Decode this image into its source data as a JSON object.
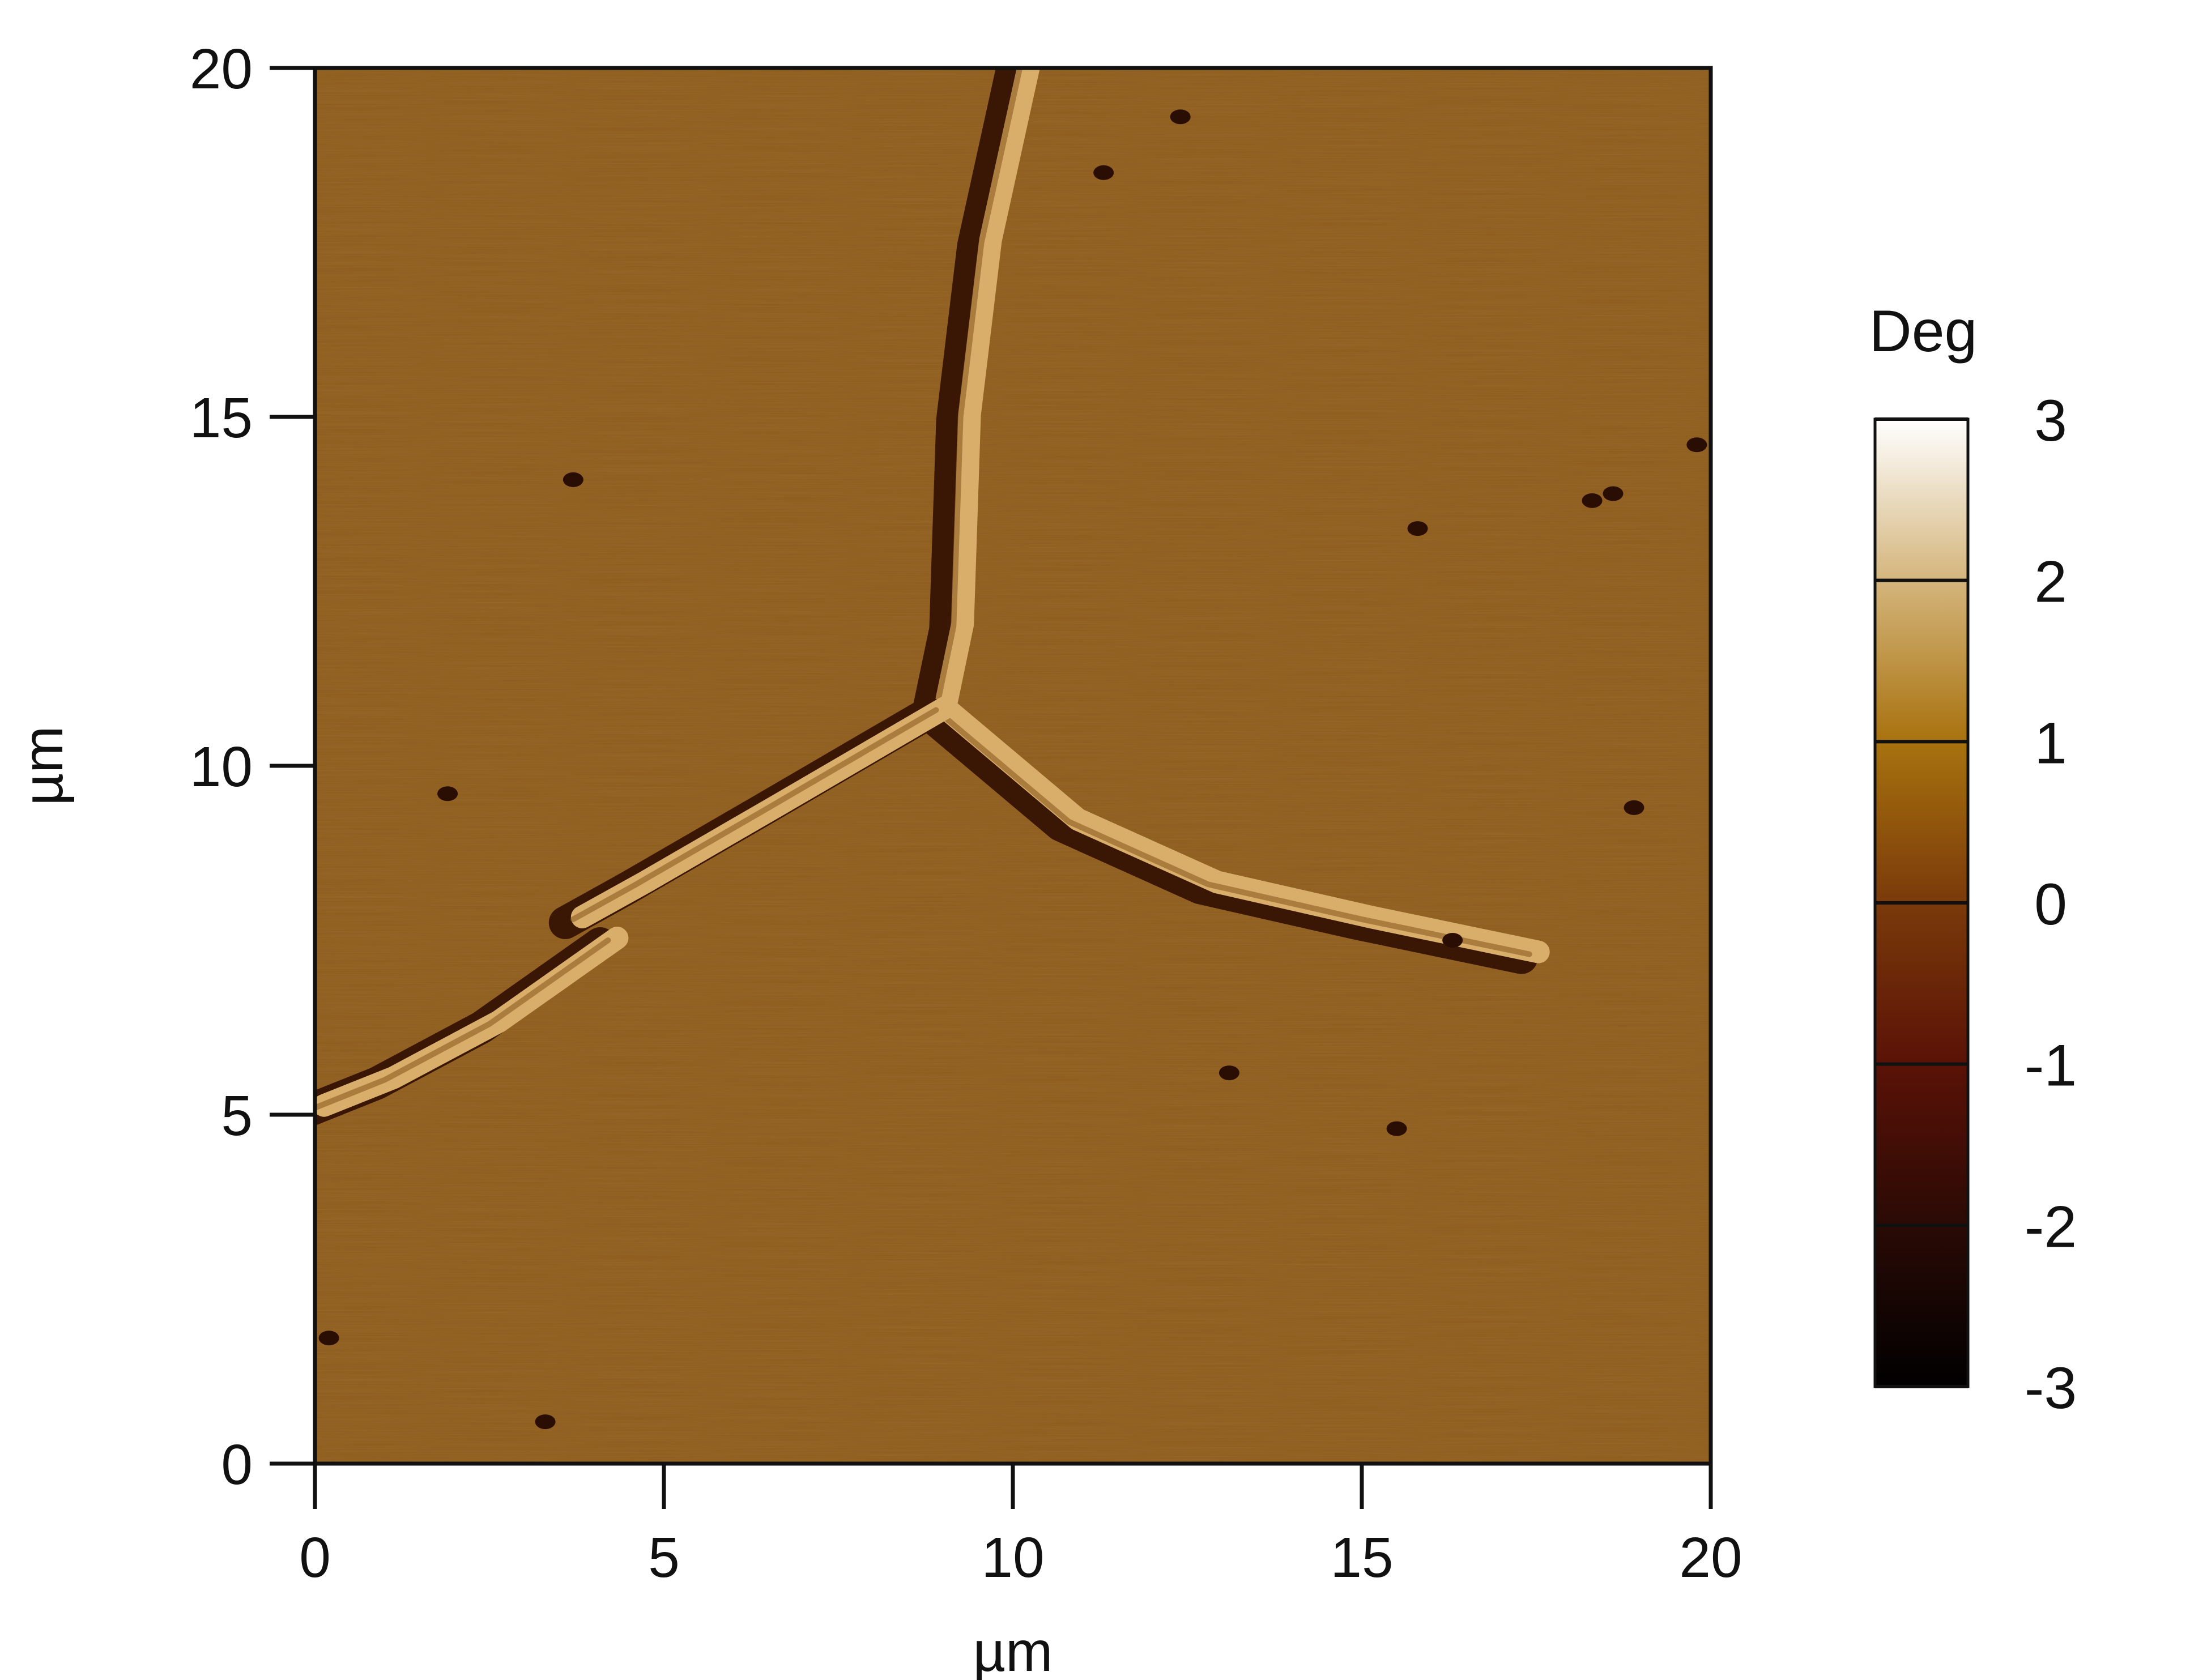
{
  "chart_data": {
    "type": "heatmap",
    "title": "",
    "xlabel": "µm",
    "ylabel": "µm",
    "xlim": [
      0,
      20
    ],
    "ylim": [
      0,
      20
    ],
    "xticks": [
      "0",
      "5",
      "10",
      "15",
      "20"
    ],
    "yticks": [
      "0",
      "5",
      "10",
      "15",
      "20"
    ],
    "grid": false,
    "colorbar": {
      "title": "Deg",
      "range": [
        -3,
        3
      ],
      "ticks": [
        "3",
        "2",
        "1",
        "0",
        "-1",
        "-2",
        "-3"
      ],
      "colormap_stops": [
        {
          "value": -3,
          "color": "#000000"
        },
        {
          "value": -2,
          "color": "#2a0a05"
        },
        {
          "value": -1,
          "color": "#5a1206"
        },
        {
          "value": 0,
          "color": "#7a3a0a"
        },
        {
          "value": 1,
          "color": "#a8720e"
        },
        {
          "value": 2,
          "color": "#d4b57c"
        },
        {
          "value": 3,
          "color": "#ffffff"
        }
      ]
    },
    "background_color": "#8c5a1c",
    "features": [
      {
        "name": "crack-branch-top",
        "points": [
          [
            10.1,
            20.0
          ],
          [
            9.55,
            17.5
          ],
          [
            9.25,
            15.0
          ],
          [
            9.15,
            12.0
          ],
          [
            8.9,
            10.8
          ]
        ]
      },
      {
        "name": "crack-branch-right",
        "points": [
          [
            8.9,
            10.8
          ],
          [
            10.8,
            9.2
          ],
          [
            12.8,
            8.3
          ],
          [
            15.0,
            7.8
          ],
          [
            17.4,
            7.3
          ]
        ]
      },
      {
        "name": "crack-branch-left",
        "points": [
          [
            8.9,
            10.8
          ],
          [
            6.5,
            9.4
          ],
          [
            4.6,
            8.3
          ],
          [
            3.7,
            7.8
          ]
        ]
      },
      {
        "name": "crack-segment-lower-left",
        "points": [
          [
            4.2,
            7.5
          ],
          [
            2.5,
            6.3
          ],
          [
            1.0,
            5.5
          ],
          [
            0.0,
            5.1
          ]
        ]
      }
    ],
    "defects": [
      {
        "x": 12.4,
        "y": 19.3
      },
      {
        "x": 11.3,
        "y": 18.5
      },
      {
        "x": 3.7,
        "y": 14.1
      },
      {
        "x": 18.3,
        "y": 13.8
      },
      {
        "x": 18.6,
        "y": 13.9
      },
      {
        "x": 15.8,
        "y": 13.4
      },
      {
        "x": 1.9,
        "y": 9.6
      },
      {
        "x": 18.9,
        "y": 9.4
      },
      {
        "x": 16.3,
        "y": 7.5
      },
      {
        "x": 13.1,
        "y": 5.6
      },
      {
        "x": 15.5,
        "y": 4.8
      },
      {
        "x": 3.3,
        "y": 0.6
      },
      {
        "x": 0.2,
        "y": 1.8
      },
      {
        "x": 19.8,
        "y": 14.6
      }
    ]
  }
}
